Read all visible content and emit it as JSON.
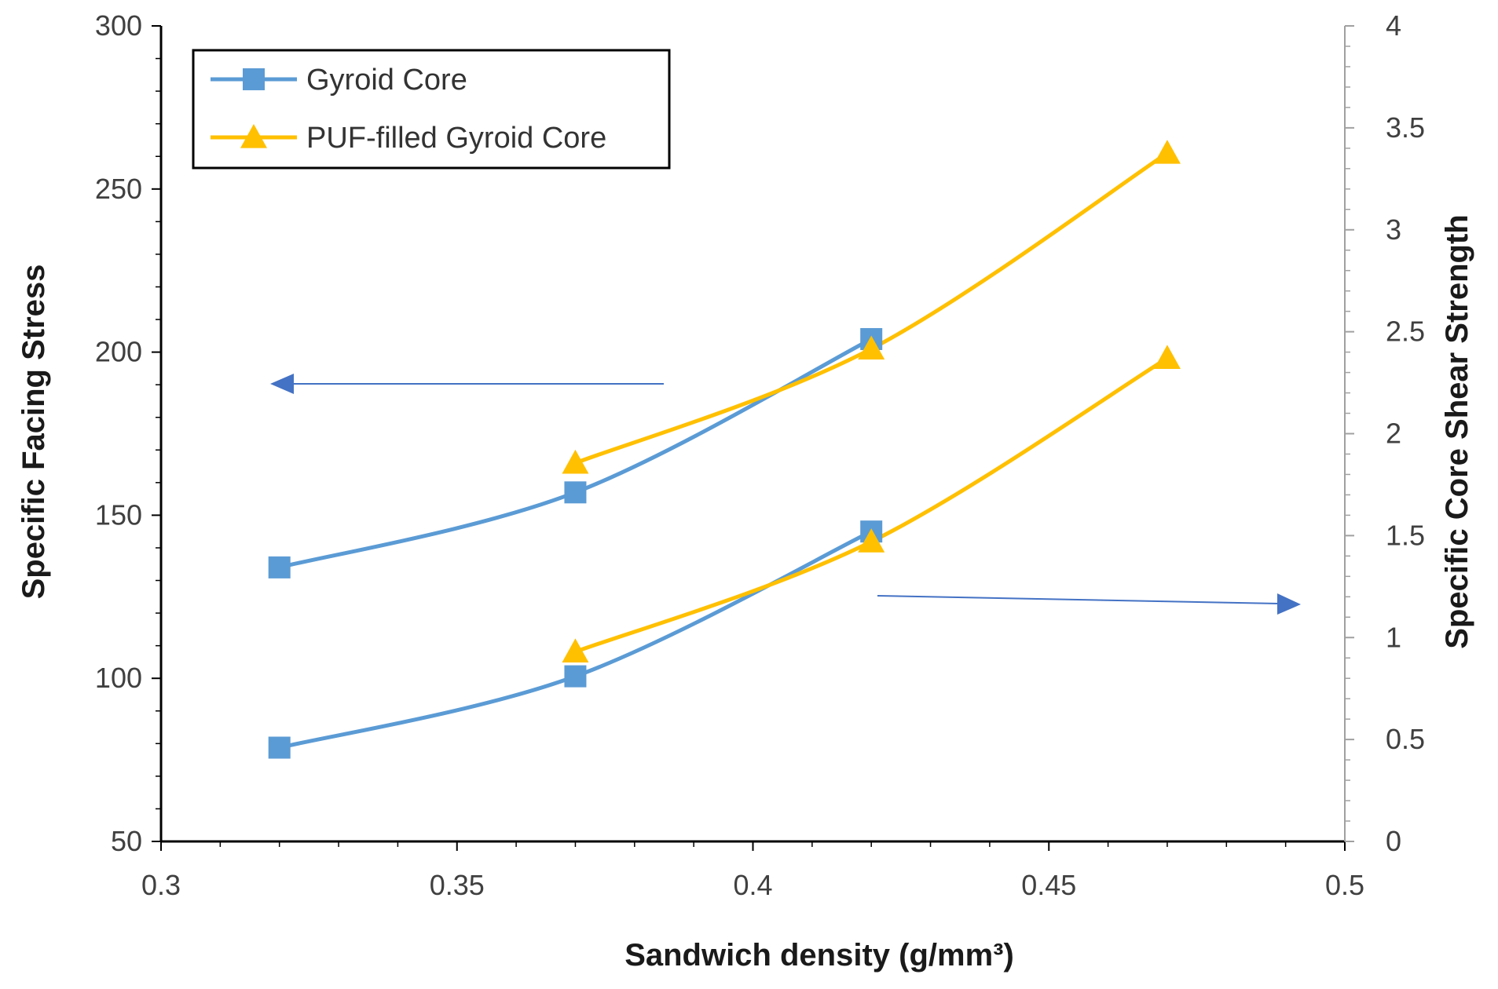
{
  "chart_data": {
    "type": "line",
    "xlabel": "Sandwich density (g/mm³)",
    "ylabel_left": "Specific Facing Stress",
    "ylabel_right": "Specific Core Shear Strength",
    "xlim": [
      0.3,
      0.5
    ],
    "xticks": [
      0.3,
      0.35,
      0.4,
      0.45,
      0.5
    ],
    "xtick_labels": [
      "0.3",
      "0.35",
      "0.4",
      "0.45",
      "0.5"
    ],
    "ylim_left": [
      50,
      300
    ],
    "yticks_left": [
      50,
      100,
      150,
      200,
      250,
      300
    ],
    "ytick_labels_left": [
      "50",
      "100",
      "150",
      "200",
      "250",
      "300"
    ],
    "ylim_right": [
      0,
      4
    ],
    "yticks_right": [
      0,
      0.5,
      1,
      1.5,
      2,
      2.5,
      3,
      3.5,
      4
    ],
    "ytick_labels_right": [
      "0",
      "0.5",
      "1",
      "1.5",
      "2",
      "2.5",
      "3",
      "3.5",
      "4"
    ],
    "legend_position": "top-left",
    "grid": false,
    "series": [
      {
        "name": "Gyroid Core",
        "axis": "left",
        "marker": "square",
        "color": "#5b9bd5",
        "x": [
          0.32,
          0.37,
          0.42
        ],
        "y": [
          134,
          157,
          204
        ]
      },
      {
        "name": "PUF-filled Gyroid Core",
        "axis": "left",
        "marker": "triangle",
        "color": "#ffc000",
        "x": [
          0.37,
          0.42,
          0.47
        ],
        "y": [
          166,
          201,
          261
        ]
      },
      {
        "name": "Gyroid Core",
        "axis": "right",
        "marker": "square",
        "color": "#5b9bd5",
        "x": [
          0.32,
          0.37,
          0.42
        ],
        "y": [
          0.46,
          0.81,
          1.52
        ]
      },
      {
        "name": "PUF-filled Gyroid Core",
        "axis": "right",
        "marker": "triangle",
        "color": "#ffc000",
        "x": [
          0.37,
          0.42,
          0.47
        ],
        "y": [
          0.93,
          1.47,
          2.37
        ]
      }
    ],
    "legend": [
      {
        "label": "Gyroid Core",
        "marker": "square",
        "color": "#5b9bd5"
      },
      {
        "label": "PUF-filled Gyroid Core",
        "marker": "triangle",
        "color": "#ffc000"
      }
    ],
    "annotations": [
      {
        "type": "arrow",
        "points_to": "left-axis",
        "color": "#4472c4"
      },
      {
        "type": "arrow",
        "points_to": "right-axis",
        "color": "#4472c4"
      }
    ]
  }
}
